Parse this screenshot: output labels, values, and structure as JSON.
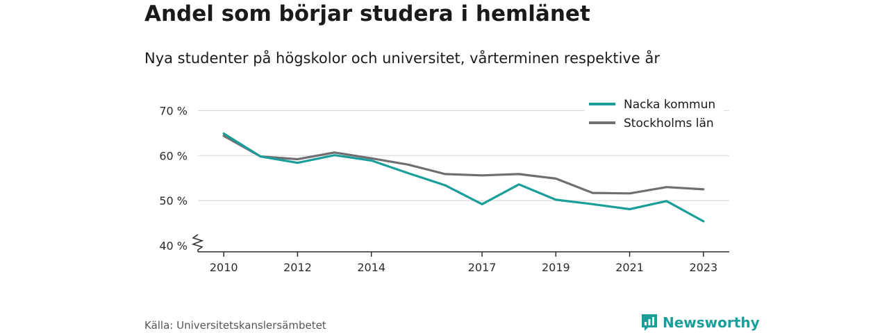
{
  "title": "Andel som börjar studera i hemlänet",
  "subtitle": "Nya studenter på högskolor och universitet, vårterminen respektive år",
  "source": "Källa: Universitetskanslersämbetet",
  "brand": {
    "name": "Newsworthy",
    "icon": "newsworthy-logo-icon",
    "color": "#1a9e9a"
  },
  "chart_data": {
    "type": "line",
    "x_ticks": [
      2010,
      2012,
      2014,
      2017,
      2019,
      2021,
      2023
    ],
    "y_ticks": [
      {
        "value": 40,
        "label": "40 %"
      },
      {
        "value": 50,
        "label": "50 %"
      },
      {
        "value": 60,
        "label": "60 %"
      },
      {
        "value": 70,
        "label": "70 %"
      }
    ],
    "xlim": [
      2009.3,
      2023.7
    ],
    "ylim": [
      40,
      73
    ],
    "y_axis_break": true,
    "grid": true,
    "legend_position": "top-right",
    "x": [
      2010,
      2011,
      2012,
      2013,
      2014,
      2015,
      2016,
      2017,
      2018,
      2019,
      2020,
      2021,
      2022,
      2023
    ],
    "series": [
      {
        "name": "Nacka kommun",
        "color": "#1a9e9a",
        "values": [
          64.9,
          59.8,
          58.4,
          60.1,
          58.9,
          56.1,
          53.4,
          49.2,
          53.6,
          50.2,
          49.2,
          48.1,
          49.9,
          45.4
        ]
      },
      {
        "name": "Stockholms län",
        "color": "#6e6e73",
        "values": [
          64.4,
          59.8,
          59.2,
          60.7,
          59.4,
          58.0,
          55.9,
          55.6,
          55.9,
          54.9,
          51.7,
          51.6,
          53.0,
          52.5
        ]
      }
    ]
  }
}
